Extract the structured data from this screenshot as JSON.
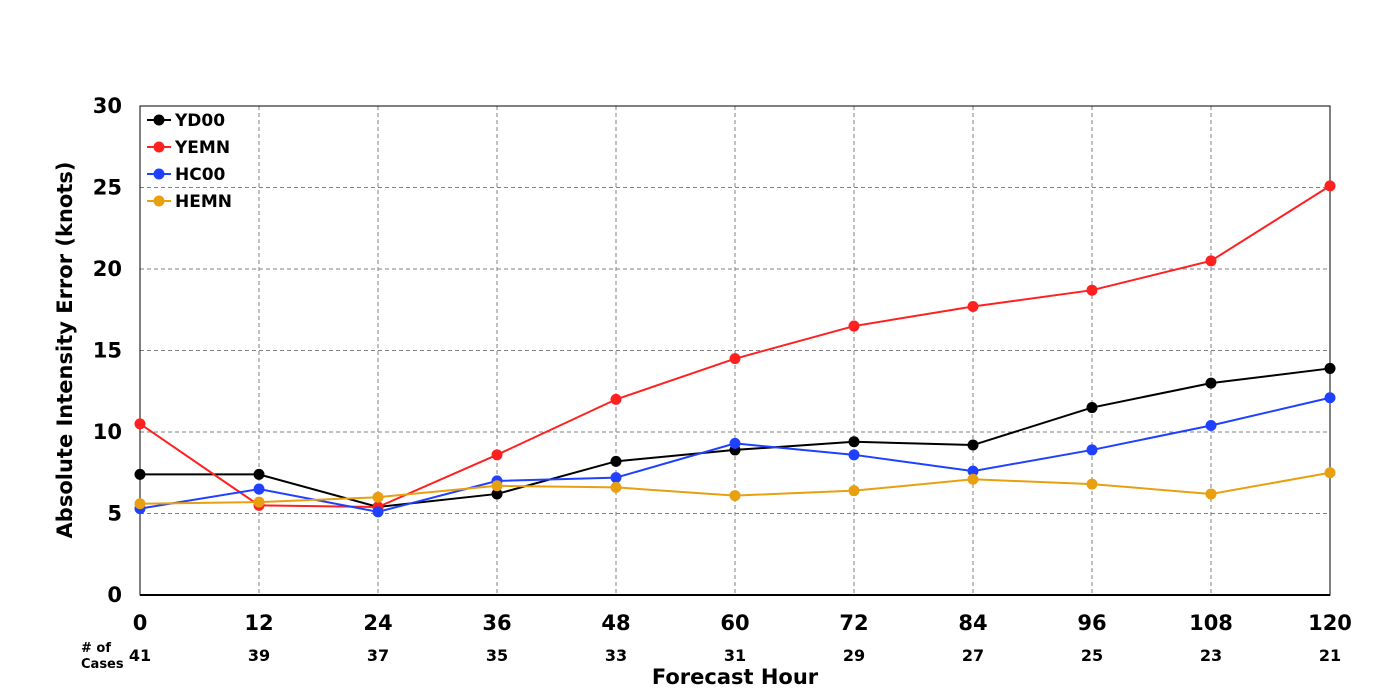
{
  "chart_data": {
    "type": "line",
    "title": "",
    "xlabel": "Forecast Hour",
    "ylabel": "Absolute Intensity Error (knots)",
    "x": [
      0,
      12,
      24,
      36,
      48,
      60,
      72,
      84,
      96,
      108,
      120
    ],
    "xlim": [
      0,
      120
    ],
    "ylim": [
      0,
      30
    ],
    "yticks": [
      0,
      5,
      10,
      15,
      20,
      25,
      30
    ],
    "grid": true,
    "legend_position": "top-left",
    "cases_label_line1": "# of",
    "cases_label_line2": "Cases",
    "cases": [
      41,
      39,
      37,
      35,
      33,
      31,
      29,
      27,
      25,
      23,
      21
    ],
    "series": [
      {
        "name": "YD00",
        "color": "#000000",
        "values": [
          7.4,
          7.4,
          5.4,
          6.2,
          8.2,
          8.9,
          9.4,
          9.2,
          11.5,
          13.0,
          13.9
        ]
      },
      {
        "name": "YEMN",
        "color": "#ff2020",
        "values": [
          10.5,
          5.5,
          5.4,
          8.6,
          12.0,
          14.5,
          16.5,
          17.7,
          18.7,
          20.5,
          25.1
        ]
      },
      {
        "name": "HC00",
        "color": "#2040ff",
        "values": [
          5.3,
          6.5,
          5.1,
          7.0,
          7.2,
          9.3,
          8.6,
          7.6,
          8.9,
          10.4,
          12.1
        ]
      },
      {
        "name": "HEMN",
        "color": "#e8a010",
        "values": [
          5.6,
          5.7,
          6.0,
          6.7,
          6.6,
          6.1,
          6.4,
          7.1,
          6.8,
          6.2,
          7.5
        ]
      }
    ]
  }
}
